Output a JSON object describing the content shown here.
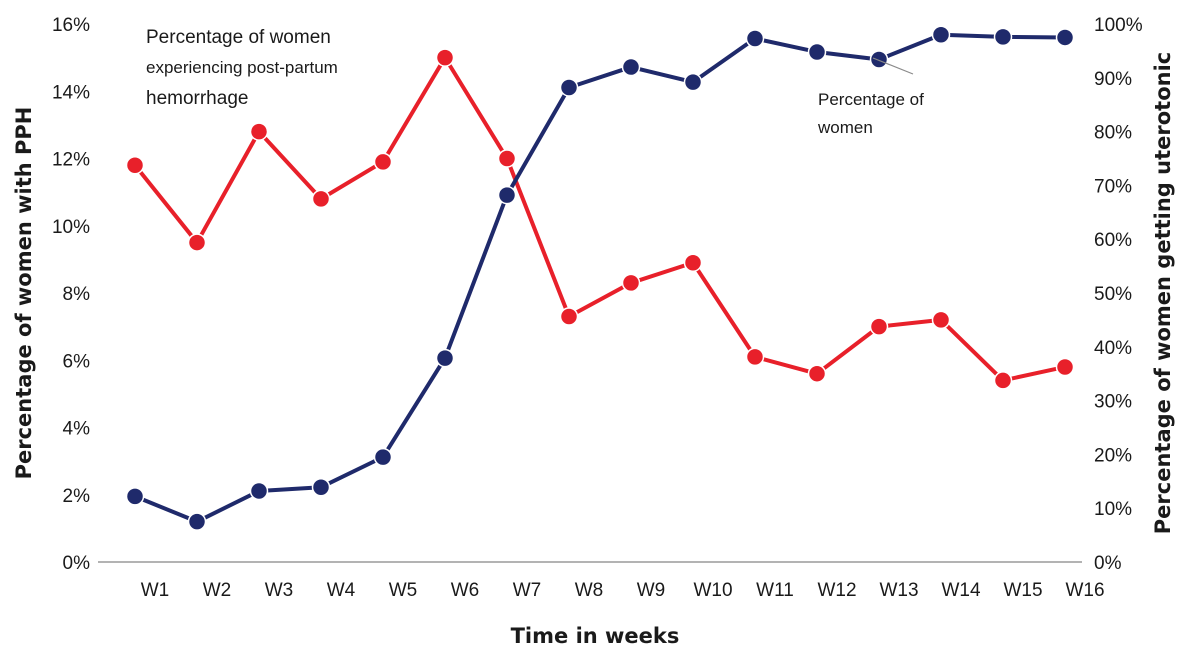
{
  "chart_data": {
    "type": "line",
    "categories": [
      "W1",
      "W2",
      "W3",
      "W4",
      "W5",
      "W6",
      "W7",
      "W8",
      "W9",
      "W10",
      "W11",
      "W12",
      "W13",
      "W14",
      "W15",
      "W16"
    ],
    "xlabel": "Time in weeks",
    "ylabel_left": "Percentage of women with PPH",
    "ylabel_right": "Percentage of women getting uterotonic",
    "ylim_left": [
      0,
      16
    ],
    "ylim_right": [
      0,
      100
    ],
    "yticks_left": [
      "0%",
      "2%",
      "4%",
      "6%",
      "8%",
      "10%",
      "12%",
      "14%",
      "16%"
    ],
    "yticks_right": [
      "0%",
      "10%",
      "20%",
      "30%",
      "40%",
      "50%",
      "60%",
      "70%",
      "80%",
      "90%",
      "100%"
    ],
    "grid": false,
    "series": [
      {
        "axis": "left",
        "color": "#e8202a",
        "values": [
          11.8,
          9.5,
          12.8,
          10.8,
          11.9,
          15.0,
          12.0,
          7.3,
          8.3,
          8.9,
          6.1,
          5.6,
          7.0,
          7.2,
          5.4,
          5.8
        ]
      },
      {
        "axis": "right",
        "color": "#1f2a6b",
        "values": [
          12.2,
          7.5,
          13.2,
          13.9,
          19.5,
          37.9,
          68.2,
          88.2,
          92.0,
          89.2,
          97.3,
          94.8,
          93.4,
          98.0,
          97.6,
          97.5
        ]
      }
    ],
    "annotations": {
      "pph_line1": "Percentage of women",
      "pph_line2": "experiencing post-partum",
      "pph_line3": "hemorrhage",
      "utero_line1": "Percentage  of",
      "utero_line2": "women"
    }
  }
}
